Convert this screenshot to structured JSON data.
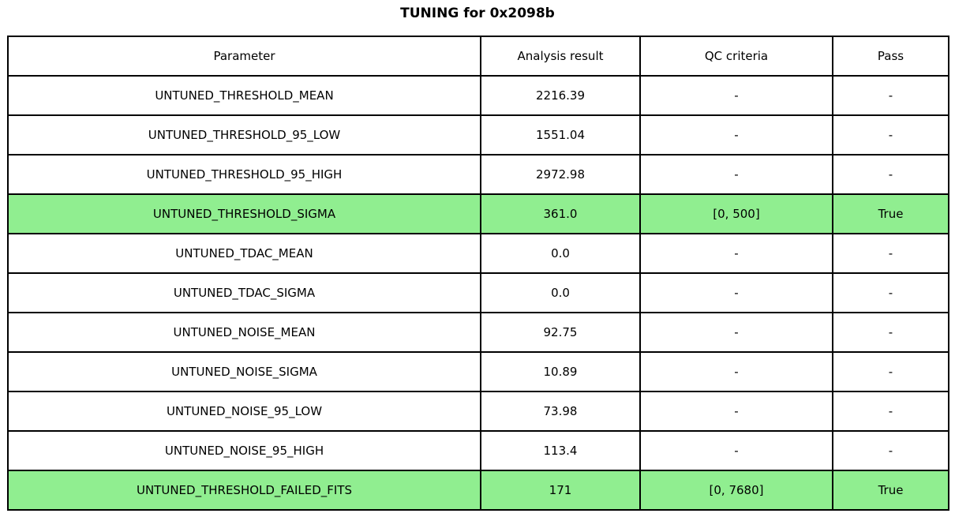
{
  "title": "TUNING for 0x2098b",
  "colors": {
    "highlight_green": "#90EE90",
    "border": "#000000",
    "background": "#FFFFFF",
    "text": "#000000"
  },
  "chart_data": {
    "type": "table",
    "title": "TUNING for 0x2098b",
    "columns": [
      "Parameter",
      "Analysis result",
      "QC criteria",
      "Pass"
    ],
    "rows": [
      [
        "UNTUNED_THRESHOLD_MEAN",
        "2216.39",
        "-",
        "-"
      ],
      [
        "UNTUNED_THRESHOLD_95_LOW",
        "1551.04",
        "-",
        "-"
      ],
      [
        "UNTUNED_THRESHOLD_95_HIGH",
        "2972.98",
        "-",
        "-"
      ],
      [
        "UNTUNED_THRESHOLD_SIGMA",
        "361.0",
        "[0, 500]",
        "True"
      ],
      [
        "UNTUNED_TDAC_MEAN",
        "0.0",
        "-",
        "-"
      ],
      [
        "UNTUNED_TDAC_SIGMA",
        "0.0",
        "-",
        "-"
      ],
      [
        "UNTUNED_NOISE_MEAN",
        "92.75",
        "-",
        "-"
      ],
      [
        "UNTUNED_NOISE_SIGMA",
        "10.89",
        "-",
        "-"
      ],
      [
        "UNTUNED_NOISE_95_LOW",
        "73.98",
        "-",
        "-"
      ],
      [
        "UNTUNED_NOISE_95_HIGH",
        "113.4",
        "-",
        "-"
      ],
      [
        "UNTUNED_THRESHOLD_FAILED_FITS",
        "171",
        "[0, 7680]",
        "True"
      ]
    ],
    "highlighted_rows": [
      3,
      10
    ],
    "highlight_color": "#90EE90",
    "legend_position": "none",
    "grid": true
  }
}
